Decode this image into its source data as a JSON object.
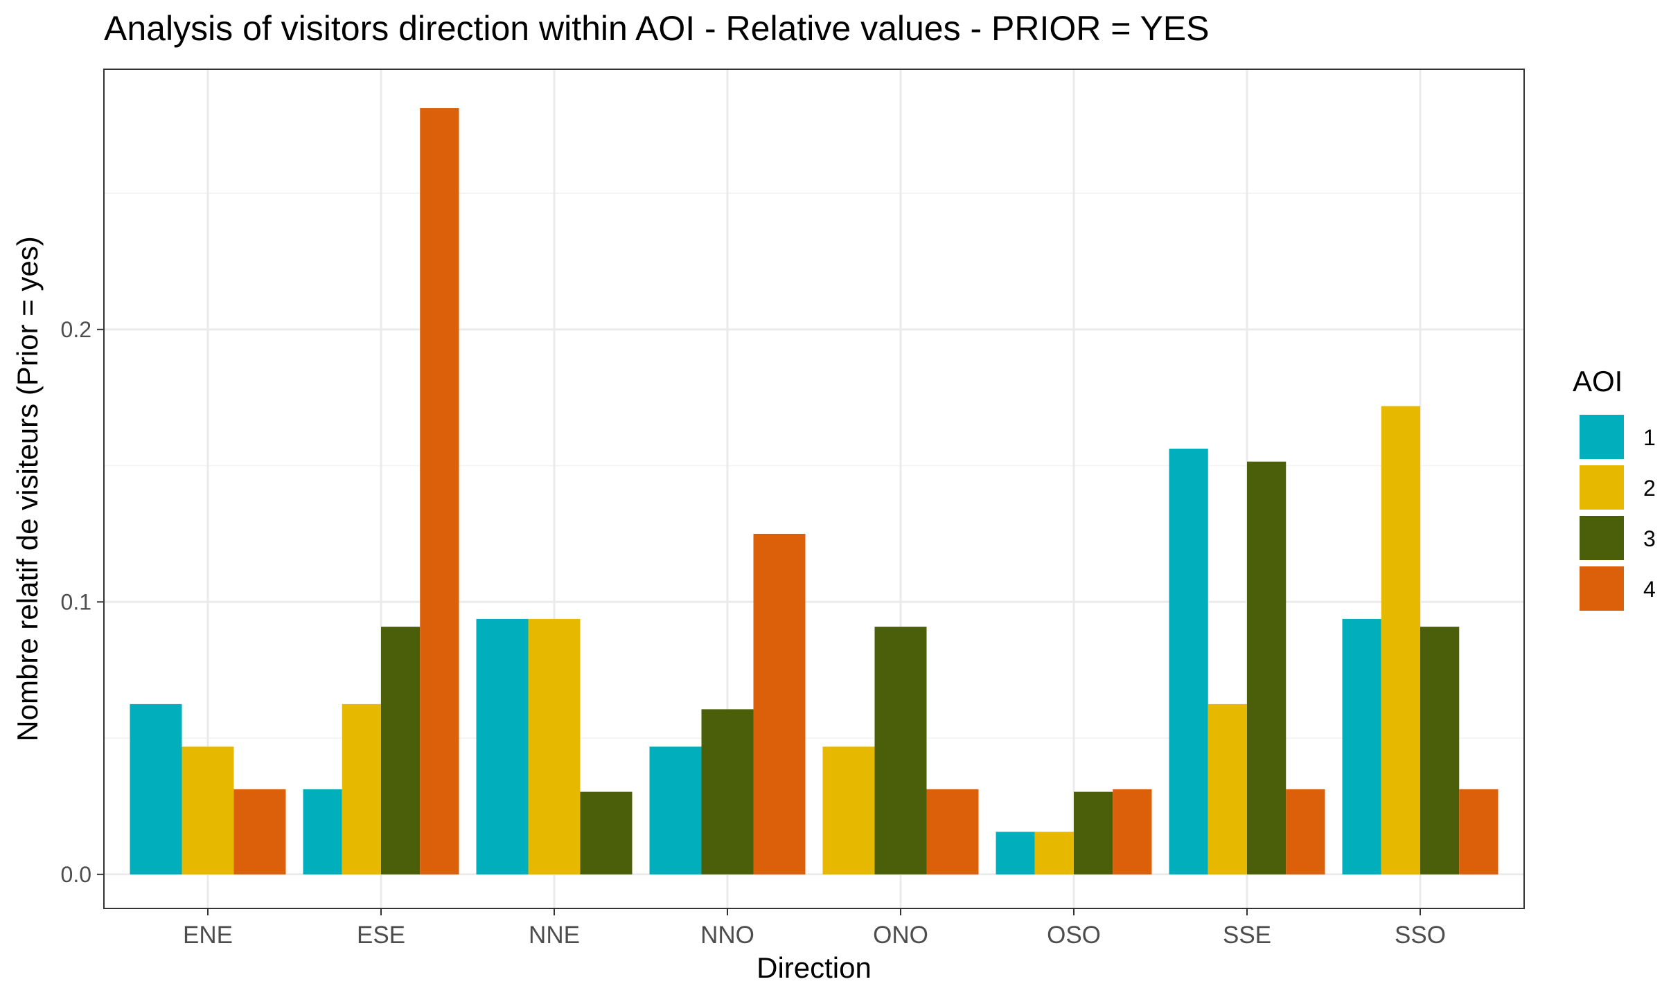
{
  "chart_data": {
    "type": "bar",
    "title": "Analysis of visitors direction within AOI - Relative values - PRIOR = YES",
    "xlabel": "Direction",
    "ylabel": "Nombre relatif de visiteurs (Prior = yes)",
    "ylim": [
      -0.0125,
      0.2955
    ],
    "yticks": [
      0.0,
      0.1,
      0.2
    ],
    "ytick_labels": [
      "0.0",
      "0.1",
      "0.2"
    ],
    "grid": true,
    "legend": {
      "title": "AOI",
      "position": "right"
    },
    "categories": [
      "ENE",
      "ESE",
      "NNE",
      "NNO",
      "ONO",
      "OSO",
      "SSE",
      "SSO"
    ],
    "series": [
      {
        "name": "1",
        "color": "#00AFBB",
        "values": [
          0.0625,
          0.03125,
          0.09375,
          0.046875,
          null,
          0.015625,
          0.15625,
          0.09375
        ]
      },
      {
        "name": "2",
        "color": "#E7B800",
        "values": [
          0.046875,
          0.0625,
          0.09375,
          null,
          0.046875,
          0.015625,
          0.0625,
          0.171875
        ]
      },
      {
        "name": "3",
        "color": "#4B5F0A",
        "values": [
          null,
          0.0909,
          0.0303,
          0.0606,
          0.0909,
          0.0303,
          0.1515,
          0.0909
        ]
      },
      {
        "name": "4",
        "color": "#DC600A",
        "values": [
          0.03125,
          0.28125,
          null,
          0.125,
          0.03125,
          0.03125,
          0.03125,
          0.03125
        ]
      }
    ]
  }
}
